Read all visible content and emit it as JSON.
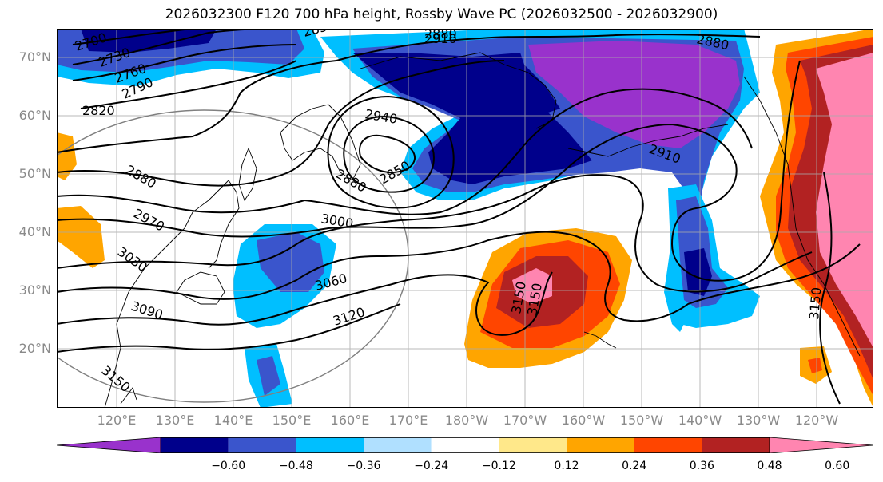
{
  "title": "2026032300 F120 700 hPa height, Rossby Wave PC (2026032500 - 2026032900)",
  "lat_labels": [
    "70°N",
    "60°N",
    "50°N",
    "40°N",
    "30°N",
    "20°N"
  ],
  "lon_labels": [
    "120°E",
    "130°E",
    "140°E",
    "150°E",
    "160°E",
    "170°E",
    "180°W",
    "170°W",
    "160°W",
    "150°W",
    "140°W",
    "130°W",
    "120°W"
  ],
  "contour_labels": [
    "2700",
    "2730",
    "2760",
    "2790",
    "2820",
    "2850",
    "2880",
    "2910",
    "2880",
    "2940",
    "2850",
    "2880",
    "2910",
    "2880",
    "2970",
    "3000",
    "3030",
    "3060",
    "3090",
    "3120",
    "3150",
    "3150",
    "3150",
    "3150"
  ],
  "colorbar": {
    "ticks": [
      "−0.60",
      "−0.48",
      "−0.36",
      "−0.24",
      "−0.12",
      "0.12",
      "0.24",
      "0.36",
      "0.48",
      "0.60"
    ],
    "colors": [
      "#9932CC",
      "#00008B",
      "#3A55CC",
      "#00BFFF",
      "#B0E0FF",
      "#FFFFFF",
      "#FFE88A",
      "#FFA500",
      "#FF4500",
      "#B22222",
      "#FF85B0"
    ]
  }
}
